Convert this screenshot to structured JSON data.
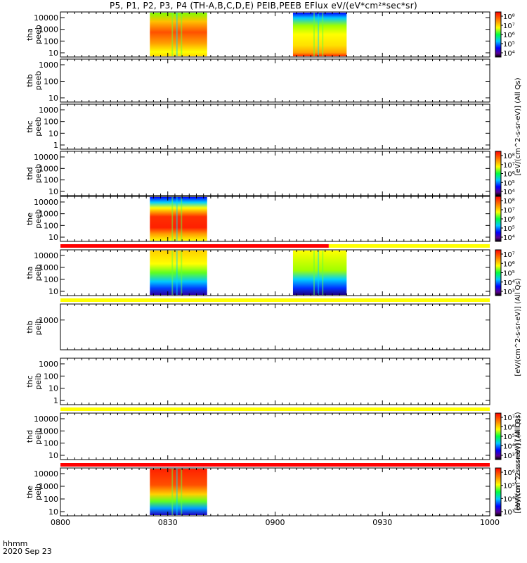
{
  "title": "P5, P1, P2, P3, P4 (TH-A,B,C,D,E) PEIB,PEEB EFlux eV/(eV*cm²*sec*sr)",
  "footer": {
    "unit_label": "hhmm",
    "date_label": "2020 Sep 23"
  },
  "colors": {
    "flag_red": "#ff0000",
    "flag_yellow": "#ffff00",
    "frame": "#000000"
  },
  "chart_data": {
    "type": "heatmap",
    "x_axis": {
      "range": [
        "08:00",
        "10:00"
      ],
      "ticks": [
        "0800",
        "0830",
        "0900",
        "0930",
        "1000"
      ]
    },
    "colorbar_labels": [
      "[eV/(cm^2-s-sr-eV)] (All Qs)",
      "[eV/(cm^2-s-sr-eV)] (All Qs)",
      "[eV/(cm^2-s-sr-eV)] (All Qs)",
      "[eV/(cm^2-s-sr-eV)] (All Qs)"
    ],
    "panels": [
      {
        "name": "tha peeb",
        "ylabel": [
          "tha",
          "peeb"
        ],
        "log": true,
        "yticks": [
          "10000",
          "1000",
          "100",
          "10"
        ],
        "colorbar": {
          "log": true,
          "ticks": [
            "10⁸",
            "10⁷",
            "10⁶",
            "10⁵",
            "10⁴"
          ]
        },
        "data_intervals": [
          [
            "08:25",
            "08:41"
          ],
          [
            "09:05",
            "09:20"
          ]
        ]
      },
      {
        "name": "thb peeb",
        "ylabel": [
          "thb",
          "peeb"
        ],
        "log": true,
        "yticks": [
          "1000",
          "100",
          "10"
        ],
        "data_intervals": []
      },
      {
        "name": "thc peeb",
        "ylabel": [
          "thc",
          "peeb"
        ],
        "log": true,
        "yticks": [
          "1000",
          "100",
          "10",
          "1"
        ],
        "data_intervals": []
      },
      {
        "name": "thd peeb",
        "ylabel": [
          "thd",
          "peeb"
        ],
        "log": true,
        "yticks": [
          "10000",
          "1000",
          "100",
          "10"
        ],
        "colorbar": {
          "log": true,
          "ticks": [
            "10⁸",
            "10⁷",
            "10⁶",
            "10⁵",
            "10⁴"
          ]
        },
        "data_intervals": []
      },
      {
        "name": "the peeb",
        "ylabel": [
          "the",
          "peeb"
        ],
        "log": true,
        "yticks": [
          "10000",
          "1000",
          "100",
          "10"
        ],
        "colorbar": {
          "log": true,
          "ticks": [
            "10⁸",
            "10⁷",
            "10⁶",
            "10⁵",
            "10⁴"
          ]
        },
        "data_intervals": [
          [
            "08:25",
            "08:41"
          ]
        ]
      },
      {
        "name": "tha peib",
        "ylabel": [
          "tha",
          "peib"
        ],
        "log": true,
        "yticks": [
          "10000",
          "1000",
          "100",
          "10"
        ],
        "colorbar": {
          "log": true,
          "ticks": [
            "10⁷",
            "10⁶",
            "10⁵",
            "10⁴",
            "10³"
          ]
        },
        "data_intervals": [
          [
            "08:25",
            "08:41"
          ],
          [
            "09:05",
            "09:20"
          ]
        ]
      },
      {
        "name": "thb peib",
        "ylabel": [
          "thb",
          "peib"
        ],
        "log": true,
        "yticks": [
          "1000"
        ],
        "data_intervals": []
      },
      {
        "name": "thc peib",
        "ylabel": [
          "thc",
          "peib"
        ],
        "log": true,
        "yticks": [
          "1000",
          "100",
          "10",
          "1"
        ],
        "data_intervals": []
      },
      {
        "name": "thd peib",
        "ylabel": [
          "thd",
          "peib"
        ],
        "log": true,
        "yticks": [
          "10000",
          "1000",
          "100",
          "10"
        ],
        "colorbar": {
          "log": true,
          "ticks": [
            "10⁷",
            "10⁶",
            "10⁵",
            "10⁴",
            "10³"
          ]
        },
        "data_intervals": []
      },
      {
        "name": "the peib",
        "ylabel": [
          "the",
          "peib"
        ],
        "log": true,
        "yticks": [
          "10000",
          "1000",
          "100",
          "10"
        ],
        "colorbar": {
          "log": true,
          "ticks": [
            "10⁶",
            "10⁵",
            "10⁴",
            "10³"
          ]
        },
        "data_intervals": [
          [
            "08:25",
            "08:41"
          ]
        ]
      }
    ],
    "flag_bars": [
      {
        "segments": [
          [
            "08:00",
            "09:15",
            "red"
          ],
          [
            "09:15",
            "10:00",
            "yellow"
          ]
        ]
      },
      {
        "segments": [
          [
            "08:00",
            "10:00",
            "yellow"
          ]
        ]
      },
      {
        "segments": [
          [
            "08:00",
            "10:00",
            "yellow"
          ]
        ]
      },
      {
        "segments": [
          [
            "08:00",
            "10:00",
            "red"
          ]
        ]
      }
    ]
  }
}
